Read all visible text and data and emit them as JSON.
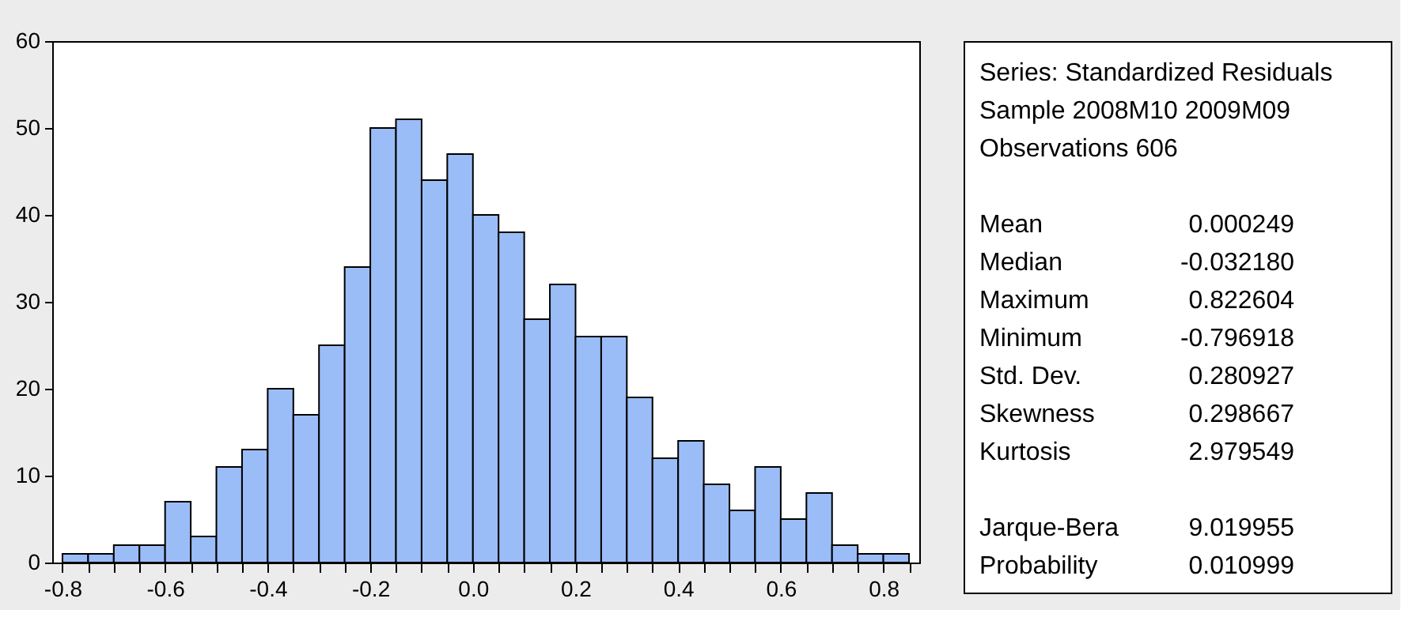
{
  "chart_data": [
    {
      "type": "histogram",
      "color": "#9bbdf7",
      "bins": [
        -0.8,
        -0.75,
        -0.7,
        -0.65,
        -0.6,
        -0.55,
        -0.5,
        -0.45,
        -0.4,
        -0.35,
        -0.3,
        -0.25,
        -0.2,
        -0.15,
        -0.1,
        -0.05,
        0.0,
        0.05,
        0.1,
        0.15,
        0.2,
        0.25,
        0.3,
        0.35,
        0.4,
        0.45,
        0.5,
        0.55,
        0.6,
        0.65,
        0.7,
        0.75,
        0.8,
        0.85
      ],
      "values": [
        1,
        1,
        2,
        2,
        7,
        3,
        11,
        13,
        20,
        17,
        25,
        34,
        50,
        51,
        44,
        47,
        40,
        38,
        28,
        32,
        26,
        26,
        19,
        12,
        14,
        9,
        6,
        11,
        5,
        8,
        2,
        1,
        1
      ],
      "xlim": [
        -0.82,
        0.87
      ],
      "ylim": [
        0,
        60
      ],
      "xticks": [
        -0.8,
        {
          "value": -0.75,
          "label": null
        },
        {
          "value": -0.7,
          "label": null
        },
        {
          "value": -0.65,
          "label": null
        },
        -0.6,
        {
          "value": -0.55,
          "label": null
        },
        {
          "value": -0.5,
          "label": null
        },
        {
          "value": -0.45,
          "label": null
        },
        -0.4,
        {
          "value": -0.35,
          "label": null
        },
        {
          "value": -0.3,
          "label": null
        },
        {
          "value": -0.25,
          "label": null
        },
        -0.2,
        {
          "value": -0.15,
          "label": null
        },
        {
          "value": -0.1,
          "label": null
        },
        {
          "value": -0.05,
          "label": null
        },
        {
          "value": 0,
          "label": "0.0"
        },
        {
          "value": 0.05,
          "label": null
        },
        {
          "value": 0.1,
          "label": null
        },
        {
          "value": 0.15,
          "label": null
        },
        0.2,
        {
          "value": 0.25,
          "label": null
        },
        {
          "value": 0.3,
          "label": null
        },
        {
          "value": 0.35,
          "label": null
        },
        0.4,
        {
          "value": 0.45,
          "label": null
        },
        {
          "value": 0.5,
          "label": null
        },
        {
          "value": 0.55,
          "label": null
        },
        0.6,
        {
          "value": 0.65,
          "label": null
        },
        {
          "value": 0.7,
          "label": null
        },
        {
          "value": 0.75,
          "label": null
        },
        0.8,
        {
          "value": 0.85,
          "label": null
        }
      ],
      "yticks": [
        0,
        10,
        20,
        30,
        40,
        50,
        60
      ],
      "grid": false
    },
    {
      "type": "other",
      "annotations": [
        "Series: Standardized Residuals",
        "Sample 2008M10 2009M09",
        "Observations 606",
        "Mean",
        "0.000249",
        "Median",
        "-0.032180",
        "Maximum",
        "0.822604",
        "Minimum",
        "-0.796918",
        "Std. Dev.",
        "0.280927",
        "Skewness",
        "0.298667",
        "Kurtosis",
        "2.979549",
        "Jarque-Bera",
        "9.019955",
        "Probability",
        "0.010999"
      ]
    }
  ]
}
